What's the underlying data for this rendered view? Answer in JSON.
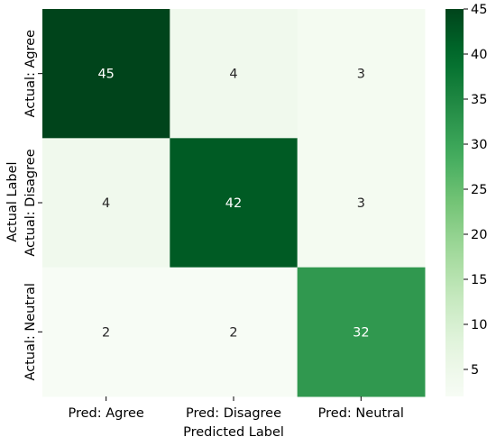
{
  "chart_data": {
    "type": "heatmap",
    "row_labels": [
      "Actual: Agree",
      "Actual: Disagree",
      "Actual: Neutral"
    ],
    "col_labels": [
      "Pred: Agree",
      "Pred: Disagree",
      "Pred: Neutral"
    ],
    "values": [
      [
        45,
        4,
        3
      ],
      [
        4,
        42,
        3
      ],
      [
        2,
        2,
        32
      ]
    ],
    "xlabel": "Predicted Label",
    "ylabel": "Actual Label",
    "colorbar": {
      "range": [
        2,
        45
      ],
      "ticks": [
        5,
        10,
        15,
        20,
        25,
        30,
        35,
        40,
        45
      ],
      "colormap": "Greens"
    },
    "colors": {
      "low": "#f7fcf5",
      "high": "#00441b",
      "annotation_light": "#ffffff",
      "annotation_dark": "#262626"
    }
  }
}
